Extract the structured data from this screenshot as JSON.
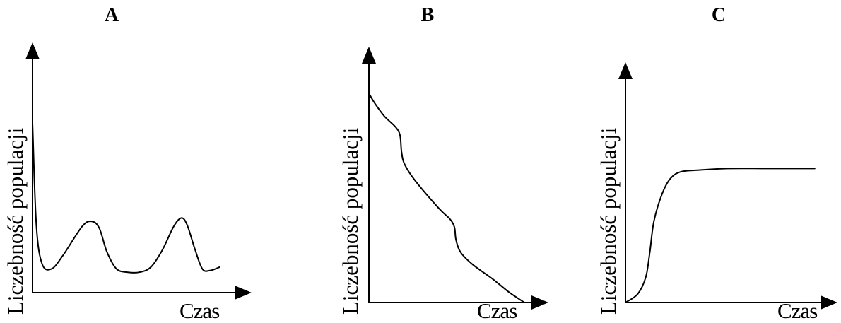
{
  "chart_data": [
    {
      "type": "line",
      "title": "A",
      "ylabel": "Liczebność populacji",
      "xlabel": "Czas",
      "axis_ticks": "none",
      "series": [
        {
          "points": [
            [
              0,
              100
            ],
            [
              2,
              40
            ],
            [
              5,
              17
            ],
            [
              10,
              14
            ],
            [
              16,
              22
            ],
            [
              26,
              39
            ],
            [
              31,
              42
            ],
            [
              35,
              38
            ],
            [
              39,
              24
            ],
            [
              44,
              14
            ],
            [
              50,
              12
            ],
            [
              56,
              12
            ],
            [
              62,
              15
            ],
            [
              68,
              25
            ],
            [
              74,
              39
            ],
            [
              78,
              44
            ],
            [
              81,
              40
            ],
            [
              85,
              26
            ],
            [
              89,
              14
            ],
            [
              93,
              13
            ],
            [
              98,
              15
            ]
          ]
        }
      ]
    },
    {
      "type": "line",
      "title": "B",
      "ylabel": "Liczebność populacji",
      "xlabel": "Czas",
      "axis_ticks": "none",
      "series": [
        {
          "points": [
            [
              0,
              100
            ],
            [
              4,
              95
            ],
            [
              10,
              89
            ],
            [
              17,
              84
            ],
            [
              20,
              80
            ],
            [
              21,
              72
            ],
            [
              23,
              66
            ],
            [
              30,
              58
            ],
            [
              45,
              45
            ],
            [
              52,
              40
            ],
            [
              55,
              36
            ],
            [
              56,
              30
            ],
            [
              59,
              24
            ],
            [
              67,
              18
            ],
            [
              80,
              11
            ],
            [
              90,
              5
            ],
            [
              100,
              0
            ]
          ]
        }
      ]
    },
    {
      "type": "line",
      "title": "C",
      "ylabel": "Liczebność populacji",
      "xlabel": "Czas",
      "axis_ticks": "none",
      "series": [
        {
          "points": [
            [
              0,
              0
            ],
            [
              6,
              5
            ],
            [
              10,
              15
            ],
            [
              12,
              30
            ],
            [
              14,
              48
            ],
            [
              18,
              64
            ],
            [
              22,
              73
            ],
            [
              27,
              77
            ],
            [
              35,
              78
            ],
            [
              50,
              79
            ],
            [
              70,
              79
            ],
            [
              93,
              79
            ]
          ]
        }
      ]
    }
  ]
}
